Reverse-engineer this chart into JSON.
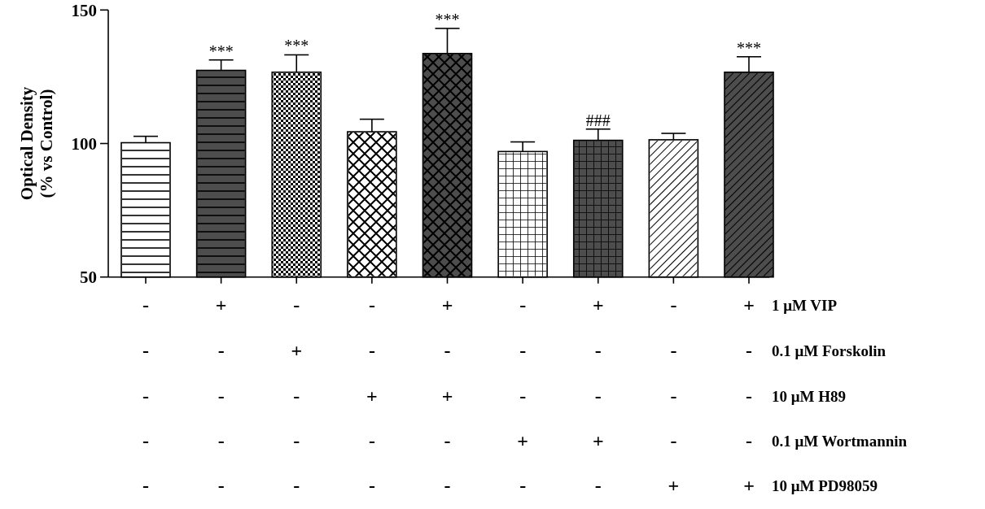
{
  "chart_data": {
    "type": "bar",
    "ylabel": "Optical Density\n(% vs Control)",
    "categories": [
      "-\n-\n-\n-\n-",
      "+\n-\n-\n-\n-",
      "-\n+\n-\n-\n-",
      "-\n-\n+\n-\n-",
      "+\n-\n+\n-\n-",
      "-\n-\n-\n+\n-",
      "+\n-\n-\n+\n-",
      "-\n-\n-\n-\n+",
      "+\n-\n-\n-\n+"
    ],
    "values": [
      100.3,
      127.4,
      126.7,
      104.4,
      133.7,
      97.0,
      101.2,
      101.4,
      126.7
    ],
    "errors": [
      2.4,
      3.9,
      6.5,
      4.7,
      9.4,
      3.6,
      4.2,
      2.4,
      5.8
    ],
    "colors": [
      "#ffffff",
      "#4d4d4d",
      "#ffffff",
      "#ffffff",
      "#4d4d4d",
      "#ffffff",
      "#4d4d4d",
      "#ffffff",
      "#4d4d4d"
    ],
    "ylim": [
      50,
      150
    ],
    "yticks": [
      50,
      100,
      150
    ],
    "grid": false,
    "annotations": [
      "1 μM VIP",
      "0.1 μM Forskolin",
      "10 μM H89",
      "0.1 μM Wortmannin",
      "10 μM PD98059",
      {
        "text": "***",
        "x": "+\n-\n-\n-\n-",
        "y": 127.4
      },
      {
        "text": "***",
        "x": "-\n+\n-\n-\n-",
        "y": 126.7
      },
      {
        "text": "***",
        "x": "+\n-\n+\n-\n-",
        "y": 133.7
      },
      {
        "text": "###",
        "x": "+\n-\n-\n+\n-",
        "y": 101.2
      },
      {
        "text": "***",
        "x": "+\n-\n-\n-\n+",
        "y": 126.7
      }
    ]
  }
}
